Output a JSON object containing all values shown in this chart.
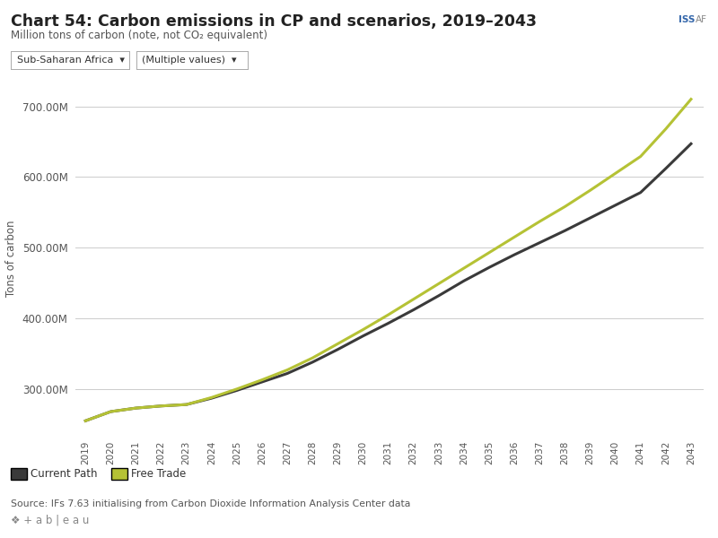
{
  "title": "Chart 54: Carbon emissions in CP and scenarios, 2019–2043",
  "subtitle": "Million tons of carbon (note, not CO₂ equivalent)",
  "ylabel": "Tons of carbon",
  "source": "Source: IFs 7.63 initialising from Carbon Dioxide Information Analysis Center data",
  "years": [
    2019,
    2020,
    2021,
    2022,
    2023,
    2024,
    2025,
    2026,
    2027,
    2028,
    2029,
    2030,
    2031,
    2032,
    2033,
    2034,
    2035,
    2036,
    2037,
    2038,
    2039,
    2040,
    2041,
    2042,
    2043
  ],
  "current_path": [
    255,
    268,
    273,
    276,
    278,
    287,
    298,
    310,
    322,
    338,
    356,
    375,
    393,
    412,
    432,
    453,
    472,
    490,
    507,
    524,
    542,
    560,
    578,
    612,
    647
  ],
  "free_trade": [
    255,
    268,
    273,
    276,
    278,
    288,
    300,
    313,
    327,
    344,
    364,
    384,
    405,
    427,
    449,
    471,
    493,
    515,
    537,
    558,
    581,
    605,
    629,
    668,
    710
  ],
  "current_path_color": "#3a3a3a",
  "free_trade_color": "#b5c235",
  "ylim_min": 230,
  "ylim_max": 740,
  "yticks": [
    300,
    400,
    500,
    600,
    700
  ],
  "background_color": "#ffffff",
  "grid_color": "#cccccc"
}
